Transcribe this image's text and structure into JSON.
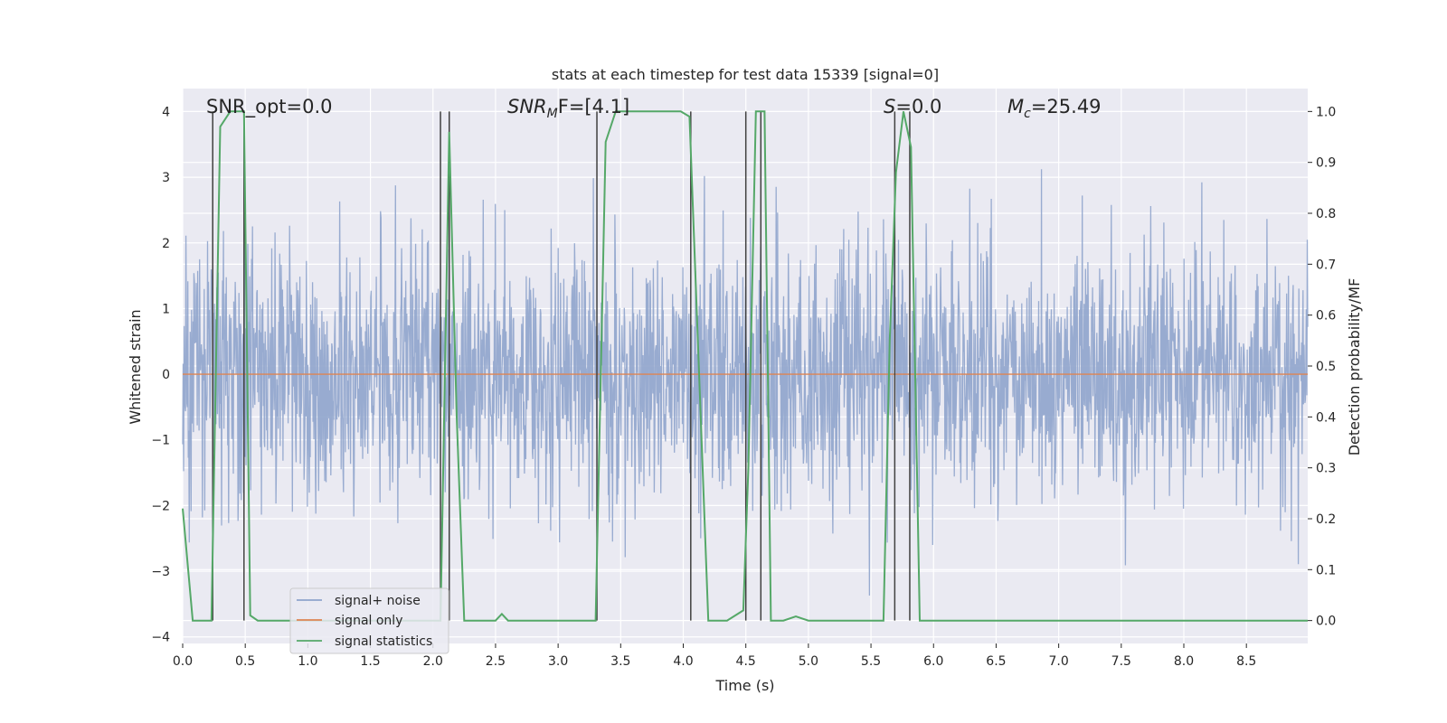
{
  "chart_data": {
    "type": "line",
    "title": "stats at each timestep for test data 15339 [signal=0]",
    "xlabel": "Time (s)",
    "ylabel_left": "Whitened strain",
    "ylabel_right": "Detection probability/MF",
    "xlim": [
      0,
      8.99
    ],
    "ylim_left": [
      -4.1,
      4.35
    ],
    "ylim_right": [
      -0.045,
      1.045
    ],
    "x_ticks": [
      0.0,
      0.5,
      1.0,
      1.5,
      2.0,
      2.5,
      3.0,
      3.5,
      4.0,
      4.5,
      5.0,
      5.5,
      6.0,
      6.5,
      7.0,
      7.5,
      8.0,
      8.5
    ],
    "x_tick_labels": [
      "0.0",
      "0.5",
      "1.0",
      "1.5",
      "2.0",
      "2.5",
      "3.0",
      "3.5",
      "4.0",
      "4.5",
      "5.0",
      "5.5",
      "6.0",
      "6.5",
      "7.0",
      "7.5",
      "8.0",
      "8.5"
    ],
    "y_left_ticks": [
      4,
      3,
      2,
      1,
      0,
      -1,
      -2,
      -3,
      -4
    ],
    "y_left_tick_labels": [
      "4",
      "3",
      "2",
      "1",
      "0",
      "−1",
      "−2",
      "−3",
      "−4"
    ],
    "y_right_ticks": [
      1.0,
      0.9,
      0.8,
      0.7,
      0.6,
      0.5,
      0.4,
      0.3,
      0.2,
      0.1,
      0.0
    ],
    "y_right_tick_labels": [
      "1.0",
      "0.9",
      "0.8",
      "0.7",
      "0.6",
      "0.5",
      "0.4",
      "0.3",
      "0.2",
      "0.1",
      "0.0"
    ],
    "grid": true,
    "legend_position": "lower-left",
    "series": [
      {
        "name": "signal+ noise",
        "axis": "left",
        "color": "#8fa4cc",
        "kind": "noise",
        "std": 0.95,
        "envelope_min": -3.55,
        "envelope_max": 3.85
      },
      {
        "name": "signal only",
        "axis": "left",
        "color": "#dd8452",
        "x": [
          0,
          8.99
        ],
        "values": [
          0,
          0
        ]
      },
      {
        "name": "signal statistics",
        "axis": "right",
        "color": "#55a868",
        "x": [
          0.0,
          0.08,
          0.23,
          0.3,
          0.38,
          0.44,
          0.49,
          0.54,
          0.6,
          0.65,
          1.0,
          1.5,
          2.0,
          2.03,
          2.06,
          2.13,
          2.19,
          2.25,
          2.5,
          2.55,
          2.6,
          3.0,
          3.3,
          3.38,
          3.46,
          3.9,
          3.98,
          4.05,
          4.2,
          4.35,
          4.48,
          4.52,
          4.58,
          4.65,
          4.7,
          4.8,
          4.9,
          5.0,
          5.5,
          5.6,
          5.65,
          5.7,
          5.76,
          5.82,
          5.89,
          6.5,
          7.0,
          8.0,
          8.99
        ],
        "values": [
          0.22,
          0.0,
          0.0,
          0.97,
          1.0,
          1.0,
          1.0,
          0.01,
          0.0,
          0.0,
          0.0,
          0.0,
          0.0,
          0.0,
          0.0,
          0.96,
          0.4,
          0.0,
          0.0,
          0.013,
          0.0,
          0.0,
          0.0,
          0.94,
          1.0,
          1.0,
          1.0,
          0.99,
          0.0,
          0.0,
          0.02,
          0.3,
          1.0,
          1.0,
          0.0,
          0.0,
          0.008,
          0.0,
          0.0,
          0.0,
          0.55,
          0.88,
          1.0,
          0.93,
          0.0,
          0.0,
          0.0,
          0.0,
          0.0
        ]
      }
    ],
    "vertical_lines": {
      "color": "#404040",
      "axis": "right",
      "x": [
        0.24,
        0.49,
        2.06,
        2.13,
        3.31,
        4.06,
        4.5,
        4.62,
        5.69,
        5.81
      ],
      "ymin": 0.0,
      "ymax": 1.0
    },
    "annotations": {
      "snr_opt": "SNR_opt=0.0",
      "snr_mf_base": "SNR",
      "snr_mf_sub": "M",
      "snr_mf_rest": "F=[4.1]",
      "s_italic": "S",
      "s_rest": "=0.0",
      "mc_base": "M",
      "mc_sub": "c",
      "mc_rest": "=25.49"
    }
  }
}
